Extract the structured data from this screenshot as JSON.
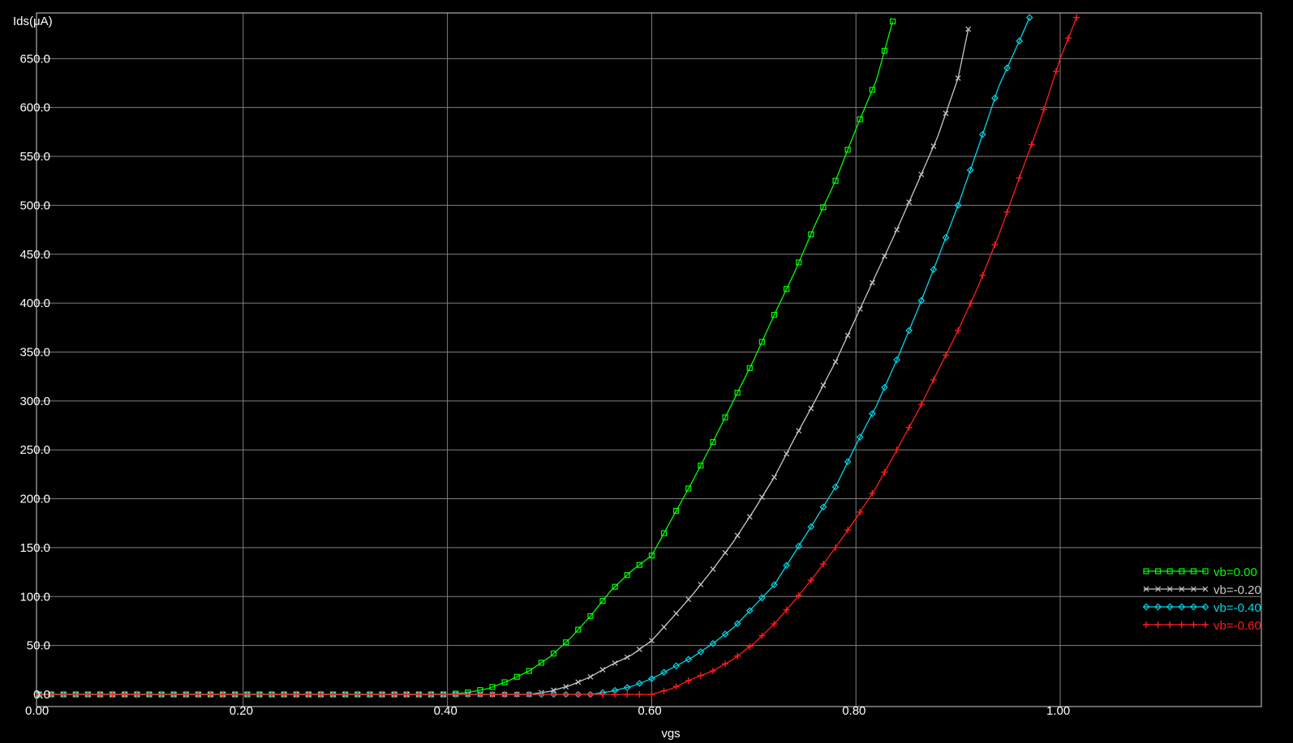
{
  "chart_data": {
    "type": "line",
    "xlabel": "vgs",
    "ylabel": "Ids(μA)",
    "xlim": [
      0.0,
      1.18
    ],
    "ylim": [
      0,
      695
    ],
    "x_ticks": [
      "0.00",
      "0.20",
      "0.40",
      "0.60",
      "0.80",
      "1.00"
    ],
    "y_ticks": [
      "0.0",
      "50.0",
      "100.0",
      "150.0",
      "200.0",
      "250.0",
      "300.0",
      "350.0",
      "400.0",
      "450.0",
      "500.0",
      "550.0",
      "600.0",
      "650.0"
    ],
    "grid": true,
    "legend_position": "bottom-right",
    "background": "#000000",
    "series": [
      {
        "name": "vb=0.00",
        "color": "#00ff00",
        "marker": "square",
        "x": [
          0.0,
          0.4,
          0.42,
          0.44,
          0.46,
          0.48,
          0.5,
          0.52,
          0.54,
          0.56,
          0.58,
          0.6,
          0.62,
          0.64,
          0.66,
          0.68,
          0.7,
          0.72,
          0.74,
          0.76,
          0.78,
          0.8,
          0.82,
          0.836
        ],
        "y": [
          0,
          0,
          2,
          6,
          14,
          24,
          38,
          57,
          80,
          106,
          126,
          142,
          180,
          218,
          258,
          300,
          342,
          388,
          432,
          480,
          525,
          578,
          628,
          688
        ]
      },
      {
        "name": "vb=-0.20",
        "color": "#c8c8c8",
        "marker": "x",
        "x": [
          0.0,
          0.48,
          0.5,
          0.52,
          0.54,
          0.56,
          0.58,
          0.6,
          0.62,
          0.64,
          0.66,
          0.68,
          0.7,
          0.72,
          0.74,
          0.76,
          0.78,
          0.8,
          0.82,
          0.84,
          0.86,
          0.88,
          0.9,
          0.91
        ],
        "y": [
          0,
          0,
          3,
          9,
          18,
          30,
          40,
          55,
          78,
          102,
          128,
          156,
          188,
          222,
          262,
          300,
          340,
          385,
          430,
          475,
          522,
          570,
          630,
          680
        ]
      },
      {
        "name": "vb=-0.40",
        "color": "#00d8e8",
        "marker": "diamond",
        "x": [
          0.0,
          0.54,
          0.56,
          0.58,
          0.6,
          0.62,
          0.64,
          0.66,
          0.68,
          0.7,
          0.72,
          0.74,
          0.76,
          0.78,
          0.8,
          0.82,
          0.84,
          0.86,
          0.88,
          0.9,
          0.92,
          0.94,
          0.96,
          0.97
        ],
        "y": [
          0,
          0,
          3,
          8,
          16,
          27,
          38,
          52,
          68,
          90,
          112,
          145,
          178,
          212,
          255,
          295,
          342,
          392,
          445,
          500,
          560,
          622,
          668,
          692
        ]
      },
      {
        "name": "vb=-0.60",
        "color": "#ff1c1c",
        "marker": "plus",
        "x": [
          0.0,
          0.6,
          0.62,
          0.64,
          0.66,
          0.68,
          0.7,
          0.72,
          0.74,
          0.76,
          0.78,
          0.8,
          0.82,
          0.84,
          0.86,
          0.88,
          0.9,
          0.92,
          0.94,
          0.96,
          0.98,
          1.0,
          1.016
        ],
        "y": [
          0,
          0,
          6,
          16,
          24,
          36,
          52,
          72,
          96,
          122,
          150,
          180,
          212,
          250,
          288,
          330,
          372,
          418,
          470,
          528,
          585,
          650,
          692
        ]
      }
    ]
  }
}
